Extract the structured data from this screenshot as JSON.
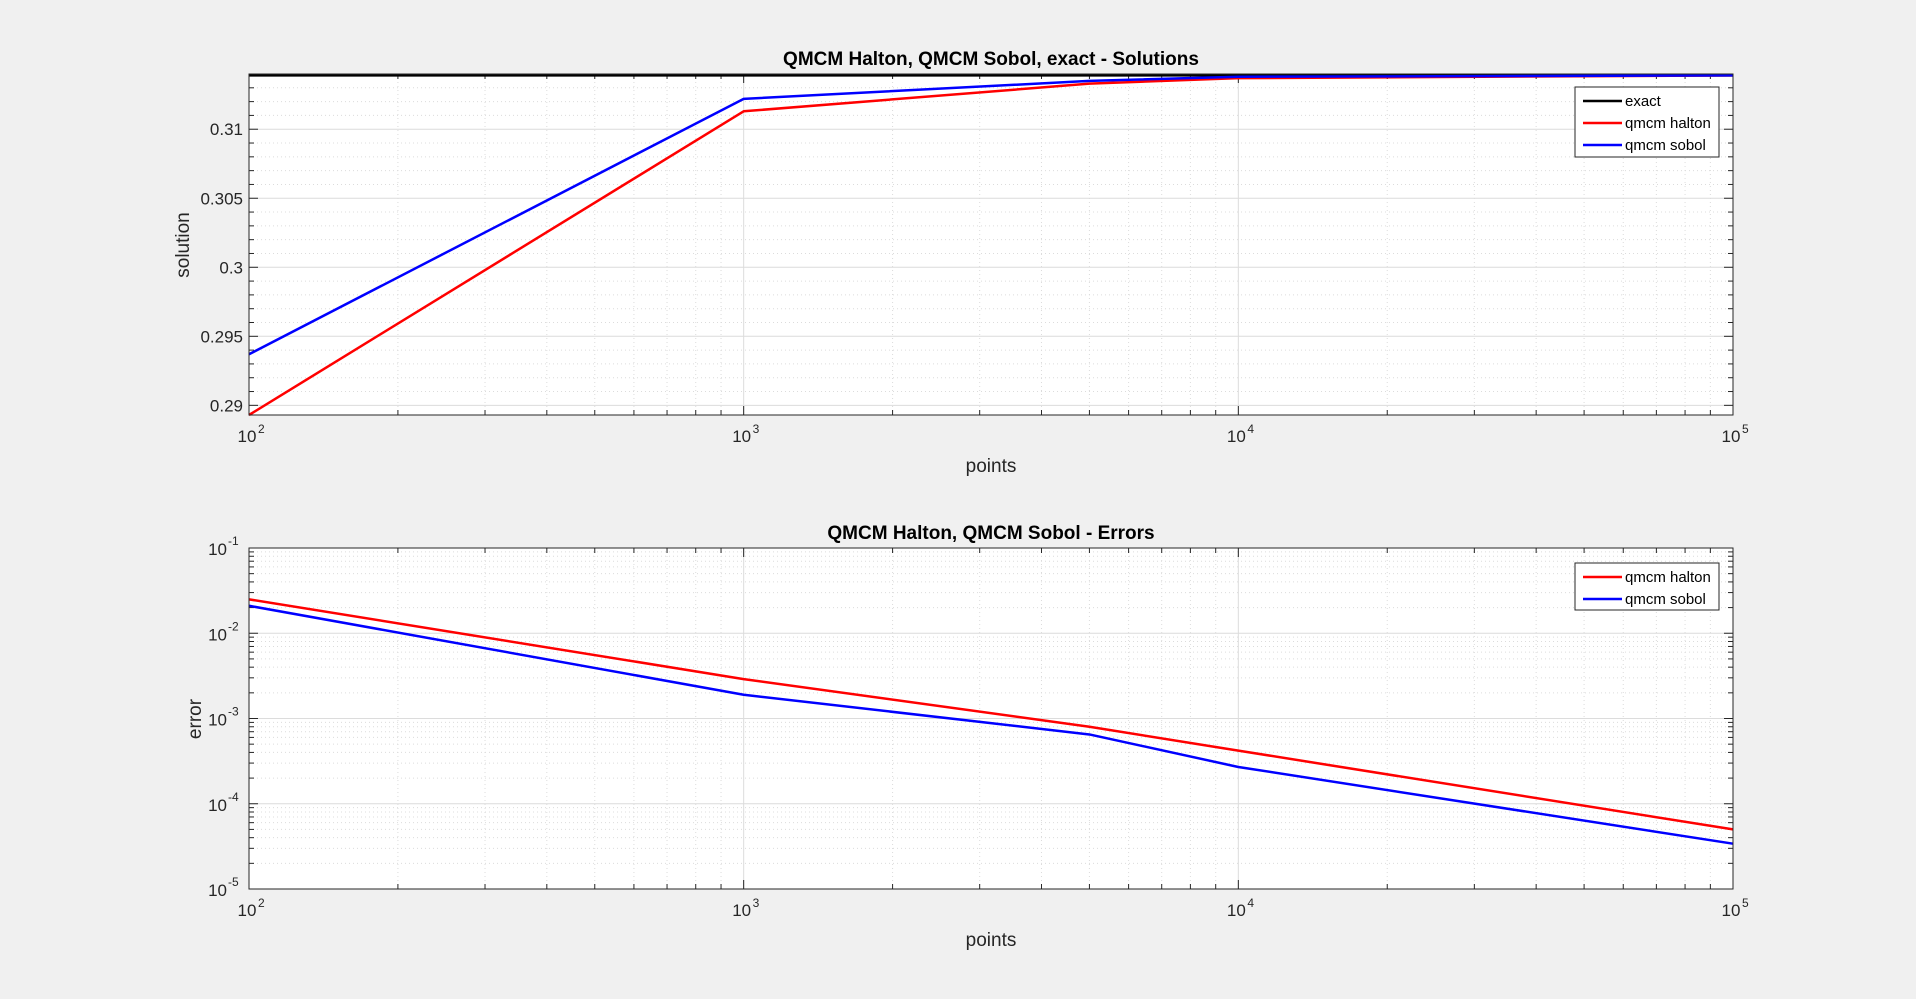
{
  "chart_data": [
    {
      "type": "line",
      "title": "QMCM Halton, QMCM Sobol, exact - Solutions",
      "xlabel": "points",
      "ylabel": "solution",
      "xscale": "log",
      "yscale": "linear",
      "xlim": [
        100,
        100000
      ],
      "ylim": [
        0.2893,
        0.314
      ],
      "x_ticks": [
        100,
        1000,
        10000,
        100000
      ],
      "x_tick_labels": [
        {
          "base": "10",
          "exp": "2"
        },
        {
          "base": "10",
          "exp": "3"
        },
        {
          "base": "10",
          "exp": "4"
        },
        {
          "base": "10",
          "exp": "5"
        }
      ],
      "y_ticks": [
        0.29,
        0.295,
        0.3,
        0.305,
        0.31
      ],
      "y_tick_labels": [
        "0.29",
        "0.295",
        "0.3",
        "0.305",
        "0.31"
      ],
      "grid": true,
      "legend_position": "top-right",
      "x": [
        100,
        1000,
        5000,
        10000,
        100000
      ],
      "series": [
        {
          "name": "exact",
          "color": "#000000",
          "values": [
            0.3139,
            0.3139,
            0.3139,
            0.3139,
            0.3139
          ]
        },
        {
          "name": "qmcm halton",
          "color": "#ff0000",
          "values": [
            0.2893,
            0.3113,
            0.3133,
            0.3137,
            0.3139
          ]
        },
        {
          "name": "qmcm sobol",
          "color": "#0000ff",
          "values": [
            0.2937,
            0.3122,
            0.3135,
            0.3138,
            0.3139
          ]
        }
      ]
    },
    {
      "type": "line",
      "title": "QMCM Halton, QMCM Sobol - Errors",
      "xlabel": "points",
      "ylabel": "error",
      "xscale": "log",
      "yscale": "log",
      "xlim": [
        100,
        100000
      ],
      "ylim": [
        1e-05,
        0.1
      ],
      "x_ticks": [
        100,
        1000,
        10000,
        100000
      ],
      "x_tick_labels": [
        {
          "base": "10",
          "exp": "2"
        },
        {
          "base": "10",
          "exp": "3"
        },
        {
          "base": "10",
          "exp": "4"
        },
        {
          "base": "10",
          "exp": "5"
        }
      ],
      "y_ticks": [
        1e-05,
        0.0001,
        0.001,
        0.01,
        0.1
      ],
      "y_tick_labels": [
        {
          "base": "10",
          "exp": "-5"
        },
        {
          "base": "10",
          "exp": "-4"
        },
        {
          "base": "10",
          "exp": "-3"
        },
        {
          "base": "10",
          "exp": "-2"
        },
        {
          "base": "10",
          "exp": "-1"
        }
      ],
      "grid": true,
      "legend_position": "top-right",
      "x": [
        100,
        1000,
        5000,
        10000,
        100000
      ],
      "series": [
        {
          "name": "qmcm halton",
          "color": "#ff0000",
          "values": [
            0.025,
            0.0029,
            0.0008,
            0.00042,
            5e-05
          ]
        },
        {
          "name": "qmcm sobol",
          "color": "#0000ff",
          "values": [
            0.021,
            0.0019,
            0.00065,
            0.00027,
            3.4e-05
          ]
        }
      ]
    }
  ]
}
